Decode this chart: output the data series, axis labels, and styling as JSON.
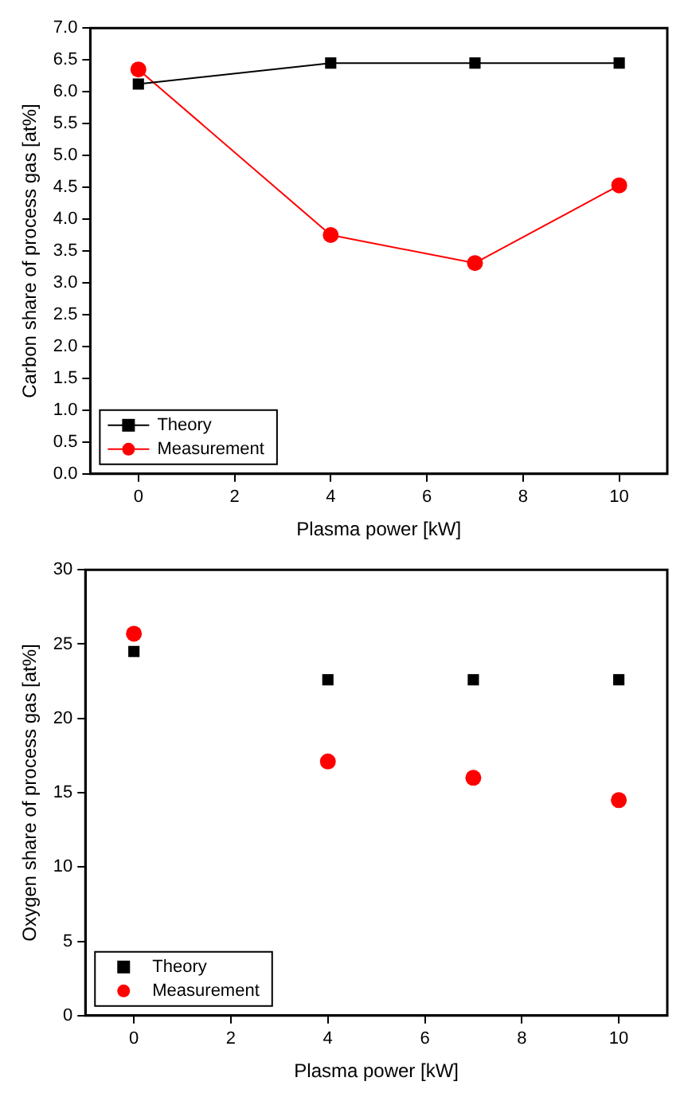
{
  "chart_data": [
    {
      "type": "line",
      "xlabel": "Plasma power [kW]",
      "ylabel": "Carbon share of process gas [at%]",
      "x": [
        0,
        4,
        7,
        10
      ],
      "xlim": [
        -1,
        11
      ],
      "xticks": [
        0,
        2,
        4,
        6,
        8,
        10
      ],
      "ylim": [
        0,
        7
      ],
      "yticks": [
        {
          "value": 0,
          "label": "0.0"
        },
        {
          "value": 0.5,
          "label": "0.5"
        },
        {
          "value": 1,
          "label": "1.0"
        },
        {
          "value": 1.5,
          "label": "1.5"
        },
        {
          "value": 2,
          "label": "2.0"
        },
        {
          "value": 2.5,
          "label": "2.5"
        },
        {
          "value": 3,
          "label": "3.0"
        },
        {
          "value": 3.5,
          "label": "3.5"
        },
        {
          "value": 4,
          "label": "4.0"
        },
        {
          "value": 4.5,
          "label": "4.5"
        },
        {
          "value": 5,
          "label": "5.0"
        },
        {
          "value": 5.5,
          "label": "5.5"
        },
        {
          "value": 6,
          "label": "6.0"
        },
        {
          "value": 6.5,
          "label": "6.5"
        },
        {
          "value": 7,
          "label": "7.0"
        }
      ],
      "grid": false,
      "legend": "bottom left",
      "line_style": "solid",
      "series": [
        {
          "name": "Theory",
          "color": "#000000",
          "marker": "square",
          "values": [
            6.12,
            6.45,
            6.45,
            6.45
          ]
        },
        {
          "name": "Measurement",
          "color": "#ff0000",
          "marker": "circle",
          "values": [
            6.35,
            3.75,
            3.31,
            4.53
          ]
        }
      ]
    },
    {
      "type": "scatter",
      "xlabel": "Plasma power [kW]",
      "ylabel": "Oxygen share of process gas [at%]",
      "x": [
        0,
        4,
        7,
        10
      ],
      "xlim": [
        -1,
        11
      ],
      "xticks": [
        0,
        2,
        4,
        6,
        8,
        10
      ],
      "ylim": [
        0,
        30
      ],
      "yticks": [
        0,
        5,
        10,
        15,
        20,
        25,
        30
      ],
      "grid": false,
      "legend": "bottom left",
      "series": [
        {
          "name": "Theory",
          "color": "#000000",
          "marker": "square",
          "values": [
            24.5,
            22.6,
            22.6,
            22.6
          ]
        },
        {
          "name": "Measurement",
          "color": "#ff0000",
          "marker": "circle",
          "values": [
            25.7,
            17.1,
            16.0,
            14.5
          ]
        }
      ]
    }
  ]
}
